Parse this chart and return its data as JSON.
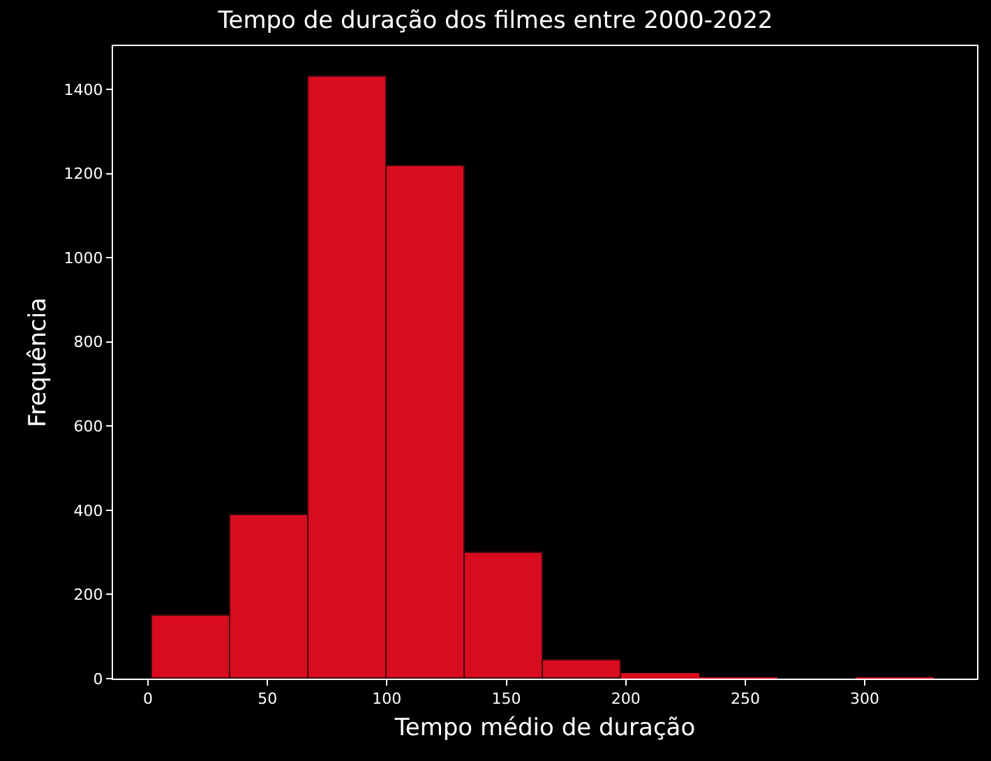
{
  "chart_data": {
    "type": "histogram",
    "title": "Tempo de duração dos filmes entre 2000-2022",
    "xlabel": "Tempo médio de duração",
    "ylabel": "Frequência",
    "bins": [
      2,
      34.7,
      67.4,
      100.1,
      132.8,
      165.5,
      198.2,
      230.9,
      263.6,
      296.3,
      329
    ],
    "values": [
      149,
      388,
      1430,
      1218,
      299,
      43,
      13,
      2,
      0,
      1
    ],
    "color": "#d90b1e",
    "xlim": [
      -14.6,
      347
    ],
    "ylim": [
      0,
      1503
    ],
    "xticks": [
      0,
      50,
      100,
      150,
      200,
      250,
      300
    ],
    "yticks": [
      0,
      200,
      400,
      600,
      800,
      1000,
      1200,
      1400
    ],
    "grid": false
  }
}
